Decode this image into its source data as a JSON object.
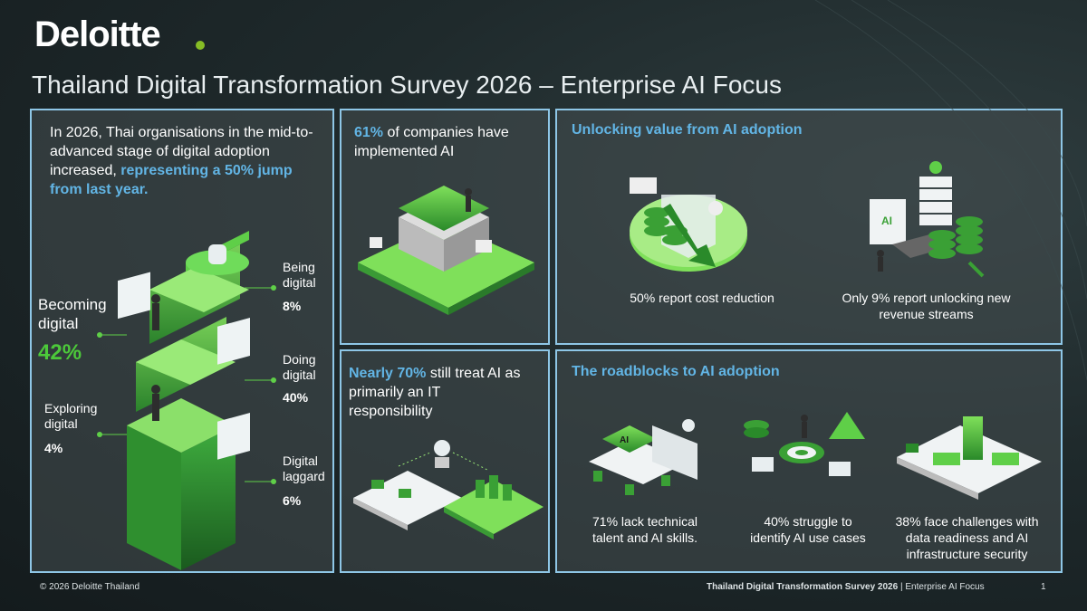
{
  "header": {
    "logo": "Deloitte",
    "title": "Thailand Digital Transformation Survey 2026 – Enterprise AI Focus"
  },
  "stages_panel": {
    "intro": "In 2026, Thai organisations in the mid-to-advanced stage of digital adoption increased,",
    "intro_highlight": "representing a 50% jump from last year.",
    "stages": [
      {
        "label": "Becoming digital",
        "value": "42%"
      },
      {
        "label": "Being digital",
        "value": "8%"
      },
      {
        "label": "Doing digital",
        "value": "40%"
      },
      {
        "label": "Exploring digital",
        "value": "4%"
      },
      {
        "label": "Digital laggard",
        "value": "6%"
      }
    ]
  },
  "implemented_panel": {
    "highlight": "61%",
    "text": "of companies have implemented AI"
  },
  "value_panel": {
    "title": "Unlocking value from AI adoption",
    "items": [
      "50% report cost reduction",
      "Only 9% report unlocking new revenue streams"
    ]
  },
  "it_panel": {
    "highlight": "Nearly 70%",
    "text": "still treat AI as primarily an IT responsibility"
  },
  "roadblocks_panel": {
    "title": "The roadblocks to AI adoption",
    "items": [
      "71% lack technical talent and AI skills.",
      "40% struggle to identify AI use cases",
      "38% face challenges with data readiness and AI infrastructure security"
    ]
  },
  "footer": {
    "copyright": "© 2026 Deloitte Thailand",
    "survey": "Thailand Digital Transformation Survey 2026",
    "separator": "|",
    "topic": "Enterprise AI Focus",
    "page": "1"
  }
}
